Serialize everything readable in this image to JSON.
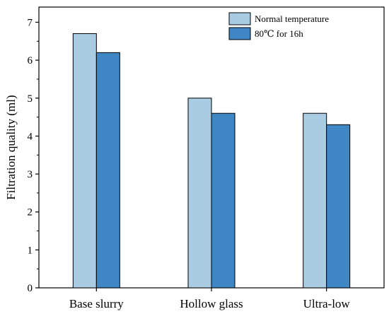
{
  "chart_data": {
    "type": "bar",
    "categories": [
      "Base slurry",
      "Hollow glass",
      "Ultra-low"
    ],
    "series": [
      {
        "name": "Normal temperature",
        "values": [
          6.7,
          5.0,
          4.6
        ],
        "color": "#a9cce3"
      },
      {
        "name": "80℃ for 16h",
        "values": [
          6.2,
          4.6,
          4.3
        ],
        "color": "#3f87c4"
      }
    ],
    "title": "",
    "xlabel": "",
    "ylabel": "Filtration quality (ml)",
    "ylim": [
      0,
      7.4
    ],
    "yticks": [
      0,
      1,
      2,
      3,
      4,
      5,
      6,
      7
    ],
    "grid": false,
    "legend_position": "top-right"
  }
}
